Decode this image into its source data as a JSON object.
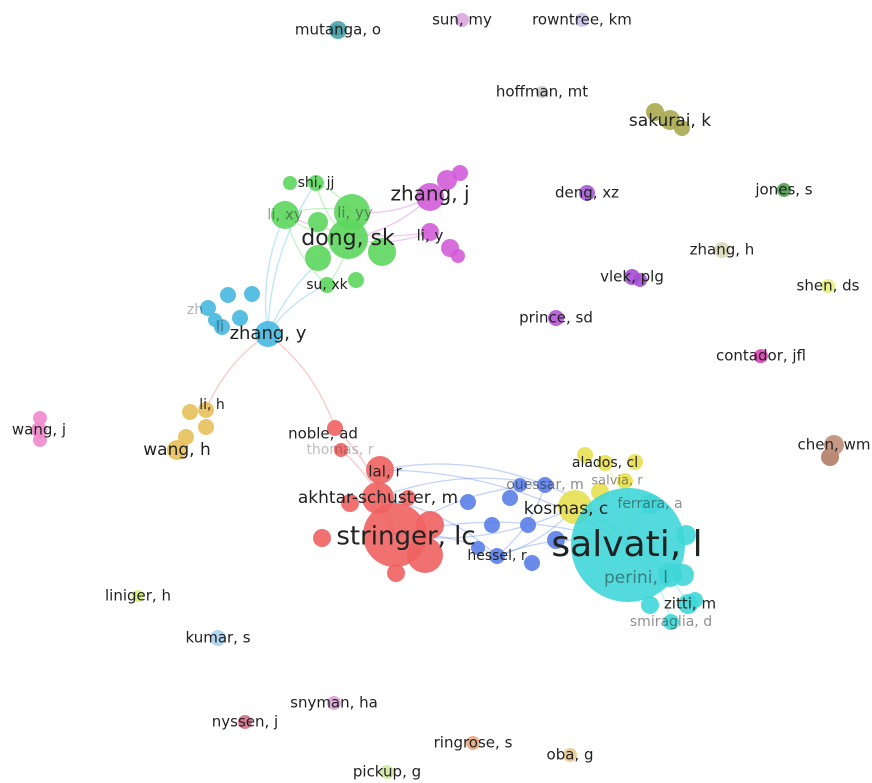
{
  "nodes": [
    {
      "label": "mutanga, o"
    },
    {
      "label": "sun, my"
    },
    {
      "label": "rowntree, km"
    },
    {
      "label": "hoffman, mt"
    },
    {
      "label": "sakurai, k"
    },
    {
      "label": "deng, xz"
    },
    {
      "label": "jones, s"
    },
    {
      "label": "zhang, h"
    },
    {
      "label": "vlek, plg"
    },
    {
      "label": "shen, ds"
    },
    {
      "label": "prince, sd"
    },
    {
      "label": "contador, jfl"
    },
    {
      "label": "wang, j"
    },
    {
      "label": "chen, wm"
    },
    {
      "label": "liniger, h"
    },
    {
      "label": "kumar, s"
    },
    {
      "label": "snyman, ha"
    },
    {
      "label": "nyssen, j"
    },
    {
      "label": "ringrose, s"
    },
    {
      "label": "oba, g"
    },
    {
      "label": "pickup, g"
    },
    {
      "label": "dong, sk"
    },
    {
      "label": "shi, jj"
    },
    {
      "label": "li, xy"
    },
    {
      "label": "li, yy"
    },
    {
      "label": "su, xk"
    },
    {
      "label": "zhang, j"
    },
    {
      "label": "li, y"
    },
    {
      "label": "zhang, y"
    },
    {
      "label": "zh"
    },
    {
      "label": "li"
    },
    {
      "label": "li, h"
    },
    {
      "label": "wang, h"
    },
    {
      "label": "stringer, lc"
    },
    {
      "label": "akhtar-schuster, m"
    },
    {
      "label": "lal, r"
    },
    {
      "label": "noble, ad"
    },
    {
      "label": "thomas, r"
    },
    {
      "label": "ouessar, m"
    },
    {
      "label": "hessel, r"
    },
    {
      "label": "kosmas, c"
    },
    {
      "label": "alados, cl"
    },
    {
      "label": "salvia, r"
    },
    {
      "label": "salvati, l"
    },
    {
      "label": "perini, l"
    },
    {
      "label": "ferrara, a"
    },
    {
      "label": "zitti, m"
    },
    {
      "label": "smiraglia, d"
    }
  ]
}
